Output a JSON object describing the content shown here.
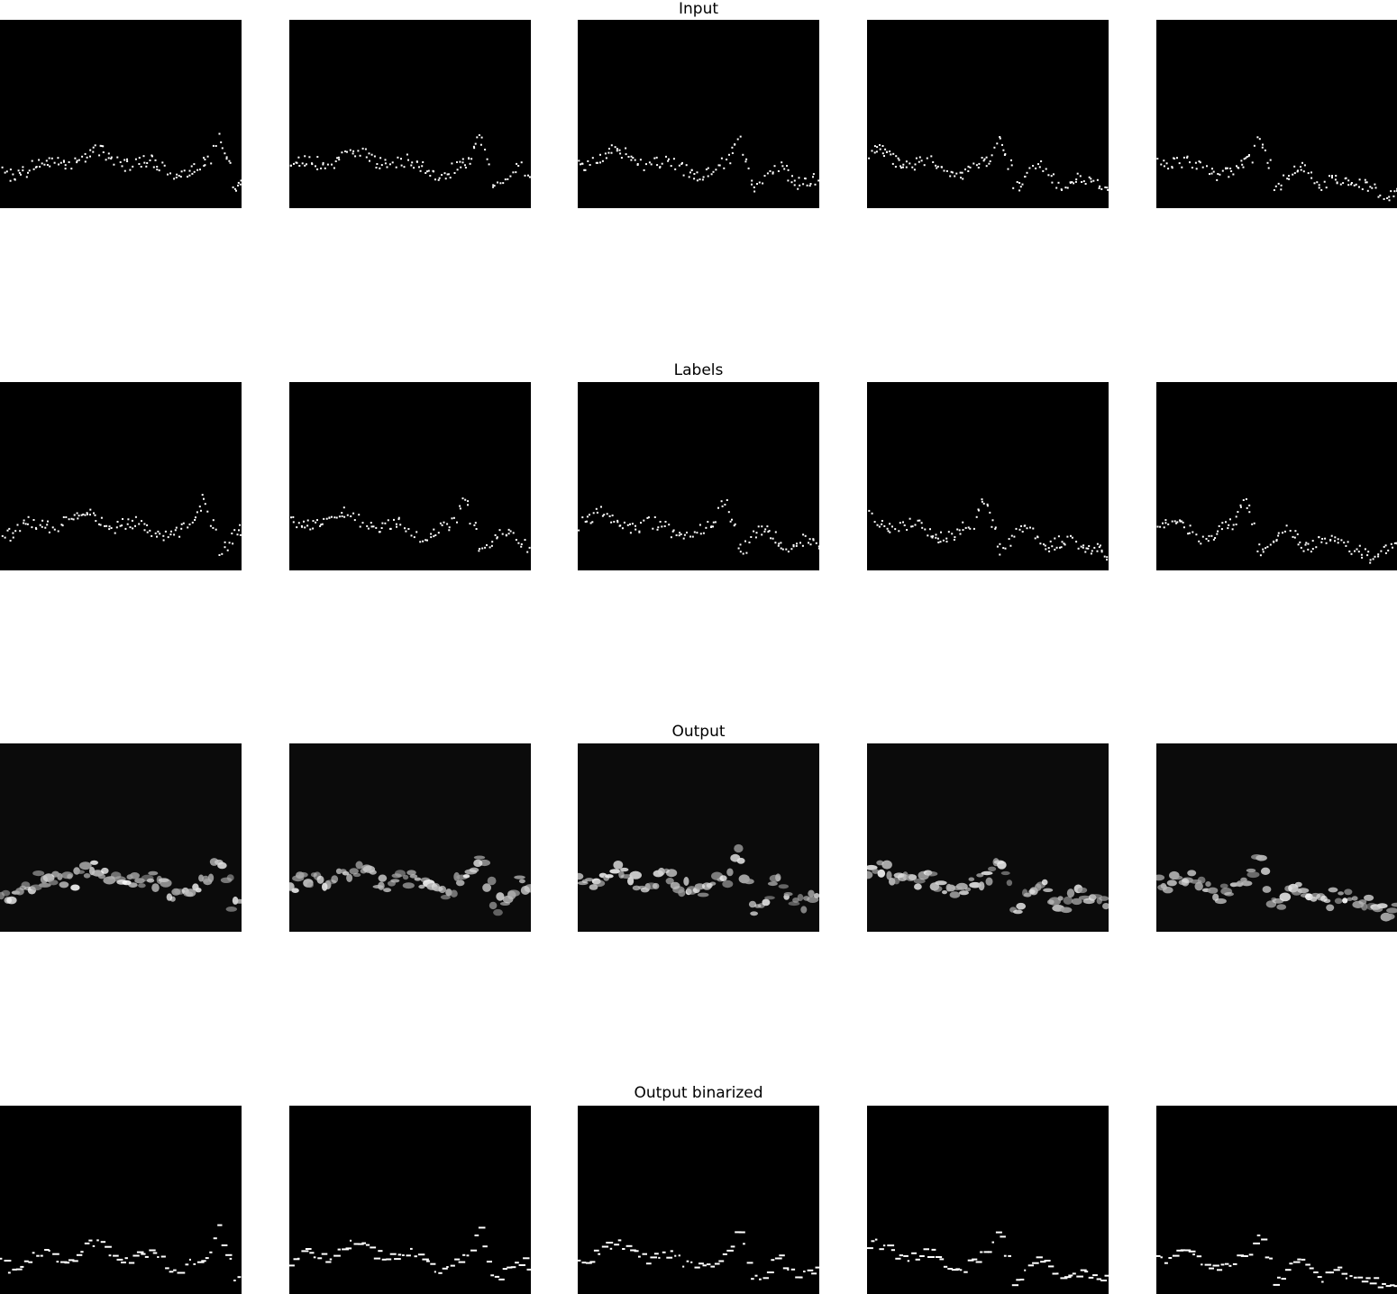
{
  "figure": {
    "rows": [
      {
        "title": "Input",
        "kind": "dots",
        "panels": 5
      },
      {
        "title": "Labels",
        "kind": "dots",
        "panels": 5
      },
      {
        "title": "Output",
        "kind": "blobs",
        "panels": 5
      },
      {
        "title": "Output binarized",
        "kind": "dashes",
        "panels": 5
      }
    ],
    "colors": {
      "background": "#ffffff",
      "panel": "#000000",
      "signal": "#ffffff"
    }
  }
}
